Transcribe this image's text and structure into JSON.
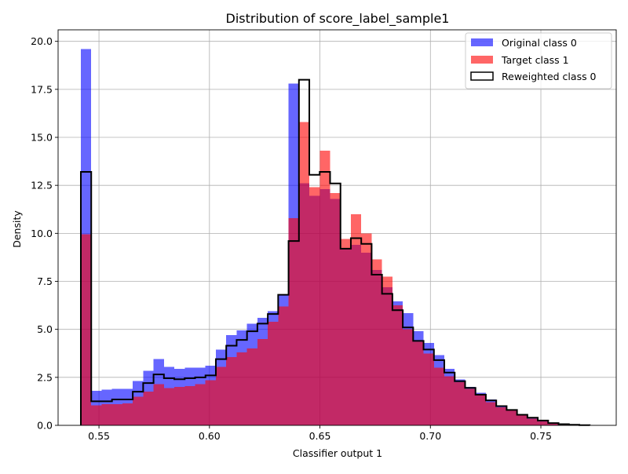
{
  "chart_data": {
    "type": "histogram",
    "title": "Distribution of score_label_sample1",
    "xlabel": "Classifier output 1",
    "ylabel": "Density",
    "xlim": [
      0.5315,
      0.7841
    ],
    "ylim": [
      0,
      20.6
    ],
    "grid": true,
    "legend_position": "top-right",
    "bin_edges": [
      0.5418,
      0.5465,
      0.5512,
      0.5559,
      0.5606,
      0.5653,
      0.57,
      0.5747,
      0.5794,
      0.5841,
      0.5888,
      0.5935,
      0.5982,
      0.6029,
      0.6076,
      0.6123,
      0.617,
      0.6217,
      0.6264,
      0.6311,
      0.6358,
      0.6405,
      0.6452,
      0.6499,
      0.6546,
      0.6593,
      0.664,
      0.6687,
      0.6734,
      0.6781,
      0.6828,
      0.6875,
      0.6922,
      0.6969,
      0.7016,
      0.7063,
      0.711,
      0.7157,
      0.7204,
      0.7251,
      0.7298,
      0.7345,
      0.7392,
      0.7439,
      0.7486,
      0.7533,
      0.758,
      0.7627,
      0.7674,
      0.7721
    ],
    "x_ticks": [
      0.55,
      0.6,
      0.65,
      0.7,
      0.75
    ],
    "x_tick_labels": [
      "0.55",
      "0.60",
      "0.65",
      "0.70",
      "0.75"
    ],
    "y_ticks": [
      0,
      2.5,
      5,
      7.5,
      10,
      12.5,
      15,
      17.5,
      20
    ],
    "y_tick_labels": [
      "0.0",
      "2.5",
      "5.0",
      "7.5",
      "10.0",
      "12.5",
      "15.0",
      "17.5",
      "20.0"
    ],
    "series": [
      {
        "name": "Original class 0",
        "style": "filled",
        "color": "#0000ff",
        "opacity": 0.6,
        "values": [
          19.6,
          1.8,
          1.85,
          1.9,
          1.9,
          2.3,
          2.85,
          3.45,
          3.05,
          2.95,
          3.0,
          3.0,
          3.1,
          3.95,
          4.7,
          4.95,
          5.3,
          5.6,
          5.95,
          6.8,
          17.8,
          12.6,
          11.95,
          12.3,
          11.8,
          9.2,
          9.4,
          9.0,
          8.1,
          7.2,
          6.45,
          5.85,
          4.9,
          4.3,
          3.65,
          2.95,
          2.4,
          2.0,
          1.7,
          1.35,
          1.05,
          0.8,
          0.6,
          0.4,
          0.25,
          0.13,
          0.07,
          0.03,
          0.01
        ]
      },
      {
        "name": "Target class 1",
        "style": "filled",
        "color": "#ff0000",
        "opacity": 0.6,
        "values": [
          9.95,
          1.05,
          1.1,
          1.1,
          1.15,
          1.5,
          1.75,
          2.15,
          1.95,
          2.0,
          2.05,
          2.15,
          2.35,
          3.05,
          3.55,
          3.8,
          4.0,
          4.5,
          5.4,
          6.2,
          10.8,
          15.8,
          12.4,
          14.3,
          12.1,
          9.7,
          11.0,
          10.0,
          8.65,
          7.75,
          6.25,
          5.0,
          4.35,
          3.75,
          3.0,
          2.55,
          2.25,
          1.9,
          1.6,
          1.2,
          0.95,
          0.8,
          0.55,
          0.35,
          0.2,
          0.12,
          0.07,
          0.04,
          0.01
        ]
      },
      {
        "name": "Reweighted class 0",
        "style": "step",
        "color": "#000000",
        "values": [
          13.2,
          1.25,
          1.25,
          1.35,
          1.35,
          1.75,
          2.2,
          2.65,
          2.45,
          2.4,
          2.45,
          2.5,
          2.6,
          3.45,
          4.15,
          4.45,
          4.9,
          5.3,
          5.8,
          6.8,
          9.6,
          18.0,
          13.05,
          13.2,
          12.6,
          9.2,
          9.75,
          9.45,
          7.85,
          6.85,
          6.0,
          5.1,
          4.4,
          3.95,
          3.4,
          2.75,
          2.3,
          1.95,
          1.6,
          1.3,
          1.0,
          0.8,
          0.55,
          0.4,
          0.25,
          0.12,
          0.06,
          0.03,
          0.01
        ]
      }
    ]
  }
}
